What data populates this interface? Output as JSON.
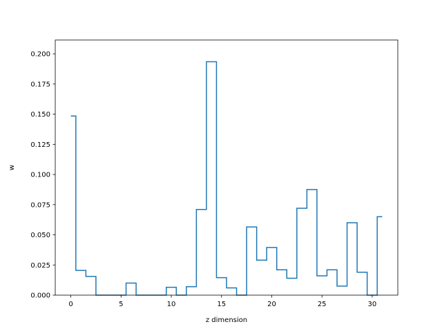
{
  "chart_data": {
    "type": "line",
    "style": "step",
    "title": "",
    "xlabel": "z dimension",
    "ylabel": "w",
    "xlim": [
      -1.55,
      32.55
    ],
    "ylim": [
      0,
      0.2115
    ],
    "x_ticks": [
      0,
      5,
      10,
      15,
      20,
      25,
      30
    ],
    "x_tick_labels": [
      "0",
      "5",
      "10",
      "15",
      "20",
      "25",
      "30"
    ],
    "y_ticks": [
      0,
      0.025,
      0.05,
      0.075,
      0.1,
      0.125,
      0.15,
      0.175,
      0.2
    ],
    "y_tick_labels": [
      "0.000",
      "0.025",
      "0.050",
      "0.075",
      "0.100",
      "0.125",
      "0.150",
      "0.175",
      "0.200"
    ],
    "grid": false,
    "series": [
      {
        "color": "#1f77b4",
        "x": [
          0,
          1,
          2,
          3,
          4,
          5,
          6,
          7,
          8,
          9,
          10,
          11,
          12,
          13,
          14,
          15,
          16,
          17,
          18,
          19,
          20,
          21,
          22,
          23,
          24,
          25,
          26,
          27,
          28,
          29,
          30,
          31
        ],
        "values": [
          0.1485,
          0.0205,
          0.0155,
          0.0,
          0.0,
          0.0,
          0.01,
          0.0,
          0.0,
          0.0,
          0.0065,
          0.0,
          0.007,
          0.071,
          0.1935,
          0.0145,
          0.006,
          0.0,
          0.0565,
          0.029,
          0.0395,
          0.021,
          0.014,
          0.072,
          0.0875,
          0.016,
          0.021,
          0.0075,
          0.06,
          0.019,
          0.0,
          0.065
        ]
      }
    ]
  }
}
